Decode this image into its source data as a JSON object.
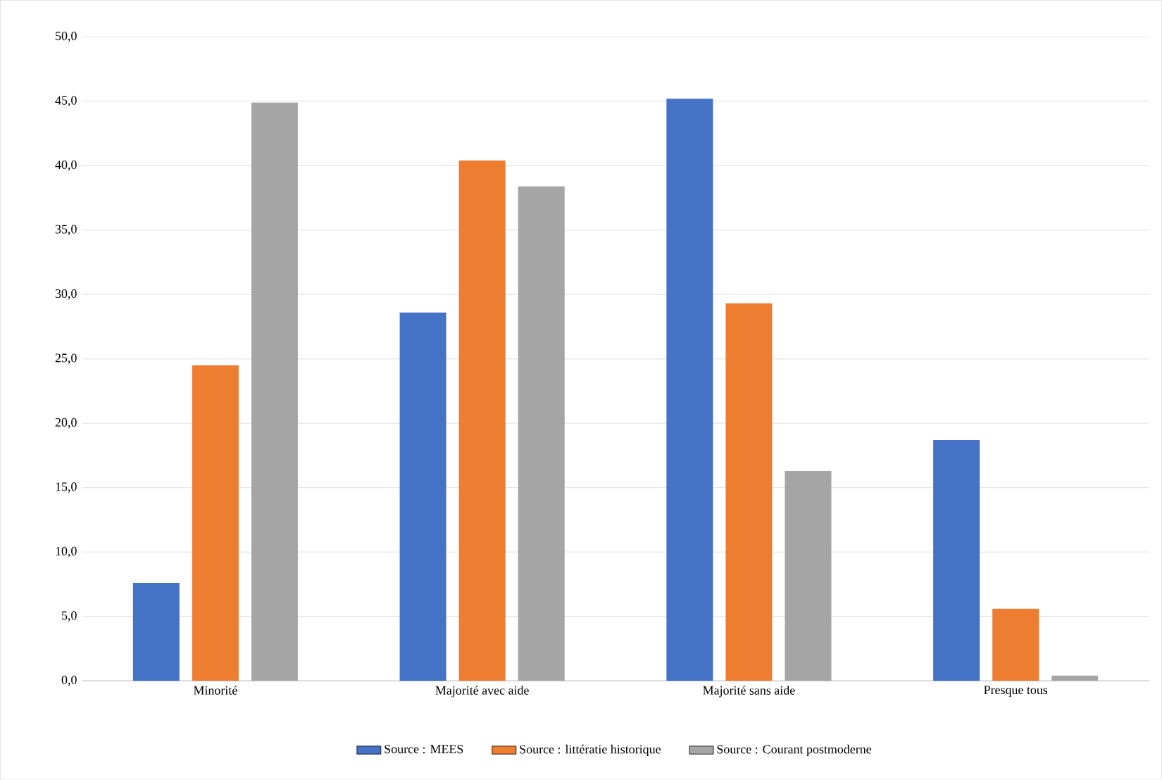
{
  "chart_data": {
    "type": "bar",
    "categories": [
      "Minorité",
      "Majorité avec aide",
      "Majorité sans aide",
      "Presque tous"
    ],
    "series": [
      {
        "name": "Source : MEES",
        "color": "#4472c4",
        "values": [
          7.6,
          28.6,
          45.2,
          18.7
        ]
      },
      {
        "name": "Source : littératie historique",
        "color": "#ed7d31",
        "values": [
          24.5,
          40.4,
          29.3,
          5.6
        ]
      },
      {
        "name": "Source : Courant postmoderne",
        "color": "#a5a5a5",
        "values": [
          44.9,
          38.4,
          16.3,
          0.4
        ]
      }
    ],
    "ylim": [
      0,
      50
    ],
    "yticks": [
      {
        "value": 0,
        "label": "0,0"
      },
      {
        "value": 5,
        "label": "5,0"
      },
      {
        "value": 10,
        "label": "10,0"
      },
      {
        "value": 15,
        "label": "15,0"
      },
      {
        "value": 20,
        "label": "20,0"
      },
      {
        "value": 25,
        "label": "25,0"
      },
      {
        "value": 30,
        "label": "30,0"
      },
      {
        "value": 35,
        "label": "35,0"
      },
      {
        "value": 40,
        "label": "40,0"
      },
      {
        "value": 45,
        "label": "45,0"
      },
      {
        "value": 50,
        "label": "50,0"
      }
    ],
    "grid": "y",
    "legend": "bottom"
  }
}
